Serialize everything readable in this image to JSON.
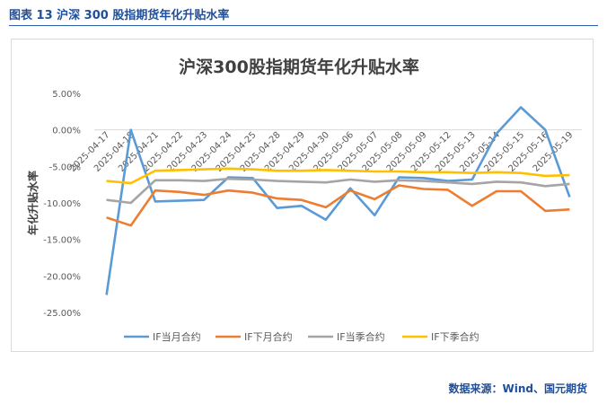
{
  "header": {
    "figure_caption": "图表 13  沪深 300 股指期货年化升贴水率"
  },
  "footer": {
    "source": "数据来源：Wind、国元期货"
  },
  "chart_data": {
    "type": "line",
    "title": "沪深300股指期货年化升贴水率",
    "xlabel": "",
    "ylabel": "年化升贴水率",
    "ylim": [
      -25,
      5
    ],
    "yticks": [
      "5.00%",
      "0.00%",
      "-5.00%",
      "-10.00%",
      "-15.00%",
      "-20.00%",
      "-25.00%"
    ],
    "y_tick_values": [
      5,
      0,
      -5,
      -10,
      -15,
      -20,
      -25
    ],
    "categories": [
      "2025-04-17",
      "2025-04-18",
      "2025-04-21",
      "2025-04-22",
      "2025-04-23",
      "2025-04-24",
      "2025-04-25",
      "2025-04-28",
      "2025-04-29",
      "2025-04-30",
      "2025-05-06",
      "2025-05-07",
      "2025-05-08",
      "2025-05-09",
      "2025-05-12",
      "2025-05-13",
      "2025-05-14",
      "2025-05-15",
      "2025-05-16",
      "2025-05-19"
    ],
    "grid": false,
    "legend_position": "bottom",
    "series": [
      {
        "name": "IF当月合约",
        "color": "#5b9bd5",
        "values": [
          -22.6,
          0.0,
          -9.8,
          -9.7,
          -9.6,
          -6.5,
          -6.6,
          -10.7,
          -10.4,
          -12.3,
          -8.0,
          -11.7,
          -6.5,
          -6.6,
          -7.0,
          -6.8,
          -0.5,
          3.1,
          0.0,
          -9.2
        ]
      },
      {
        "name": "IF下月合约",
        "color": "#ed7d31",
        "values": [
          -12.0,
          -13.1,
          -8.3,
          -8.5,
          -8.9,
          -8.3,
          -8.6,
          -9.4,
          -9.6,
          -10.6,
          -8.3,
          -9.5,
          -7.6,
          -8.1,
          -8.2,
          -10.4,
          -8.4,
          -8.4,
          -11.1,
          -10.9
        ]
      },
      {
        "name": "IF当季合约",
        "color": "#a5a5a5",
        "values": [
          -9.6,
          -10.0,
          -6.9,
          -6.9,
          -7.0,
          -6.7,
          -6.8,
          -7.0,
          -7.1,
          -7.2,
          -6.8,
          -7.1,
          -6.9,
          -7.0,
          -7.2,
          -7.4,
          -7.1,
          -7.2,
          -7.7,
          -7.4
        ]
      },
      {
        "name": "IF下季合约",
        "color": "#ffc000",
        "values": [
          -7.0,
          -7.3,
          -5.6,
          -5.5,
          -5.4,
          -5.3,
          -5.4,
          -5.6,
          -5.6,
          -5.5,
          -5.6,
          -5.7,
          -5.7,
          -5.8,
          -5.8,
          -5.9,
          -5.8,
          -5.9,
          -6.3,
          -6.2
        ]
      }
    ]
  }
}
